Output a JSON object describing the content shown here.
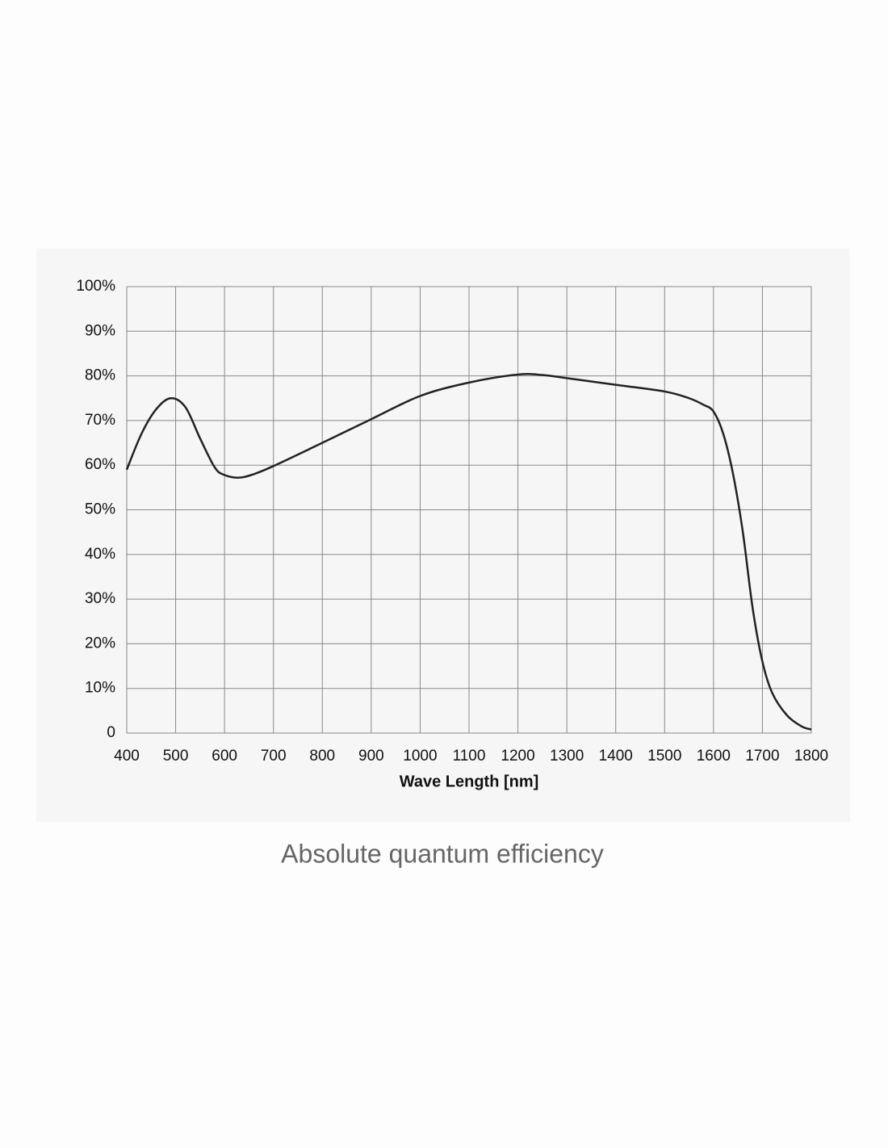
{
  "chart_data": {
    "type": "line",
    "title": "Absolute quantum efficiency",
    "x_label": "Wave Length [nm]",
    "x": [
      400,
      430,
      460,
      490,
      520,
      550,
      580,
      600,
      630,
      660,
      700,
      800,
      900,
      1000,
      1100,
      1200,
      1250,
      1300,
      1400,
      1500,
      1550,
      1580,
      1600,
      1620,
      1640,
      1660,
      1680,
      1700,
      1720,
      1750,
      1780,
      1800
    ],
    "series": [
      {
        "color": "#222222",
        "values": [
          59,
          67,
          72.5,
          75,
          73,
          66,
          59.5,
          57.8,
          57.2,
          58,
          59.8,
          65,
          70.3,
          75.5,
          78.5,
          80.3,
          80.2,
          79.5,
          78,
          76.5,
          75,
          73.5,
          72,
          67,
          58,
          45,
          28,
          16,
          9,
          4,
          1.5,
          0.8
        ]
      }
    ],
    "xlim": [
      400,
      1800
    ],
    "xticks": [
      400,
      500,
      600,
      700,
      800,
      900,
      1000,
      1100,
      1200,
      1300,
      1400,
      1500,
      1600,
      1700,
      1800
    ],
    "ylim": [
      0,
      100
    ],
    "yticks": [
      0,
      {
        "value": 10,
        "label": "10%"
      },
      {
        "value": 20,
        "label": "20%"
      },
      {
        "value": 30,
        "label": "30%"
      },
      {
        "value": 40,
        "label": "40%"
      },
      {
        "value": 50,
        "label": "50%"
      },
      {
        "value": 60,
        "label": "60%"
      },
      {
        "value": 70,
        "label": "70%"
      },
      {
        "value": 80,
        "label": "80%"
      },
      {
        "value": 90,
        "label": "90%"
      },
      {
        "value": 100,
        "label": "100%"
      }
    ],
    "grid": true
  }
}
